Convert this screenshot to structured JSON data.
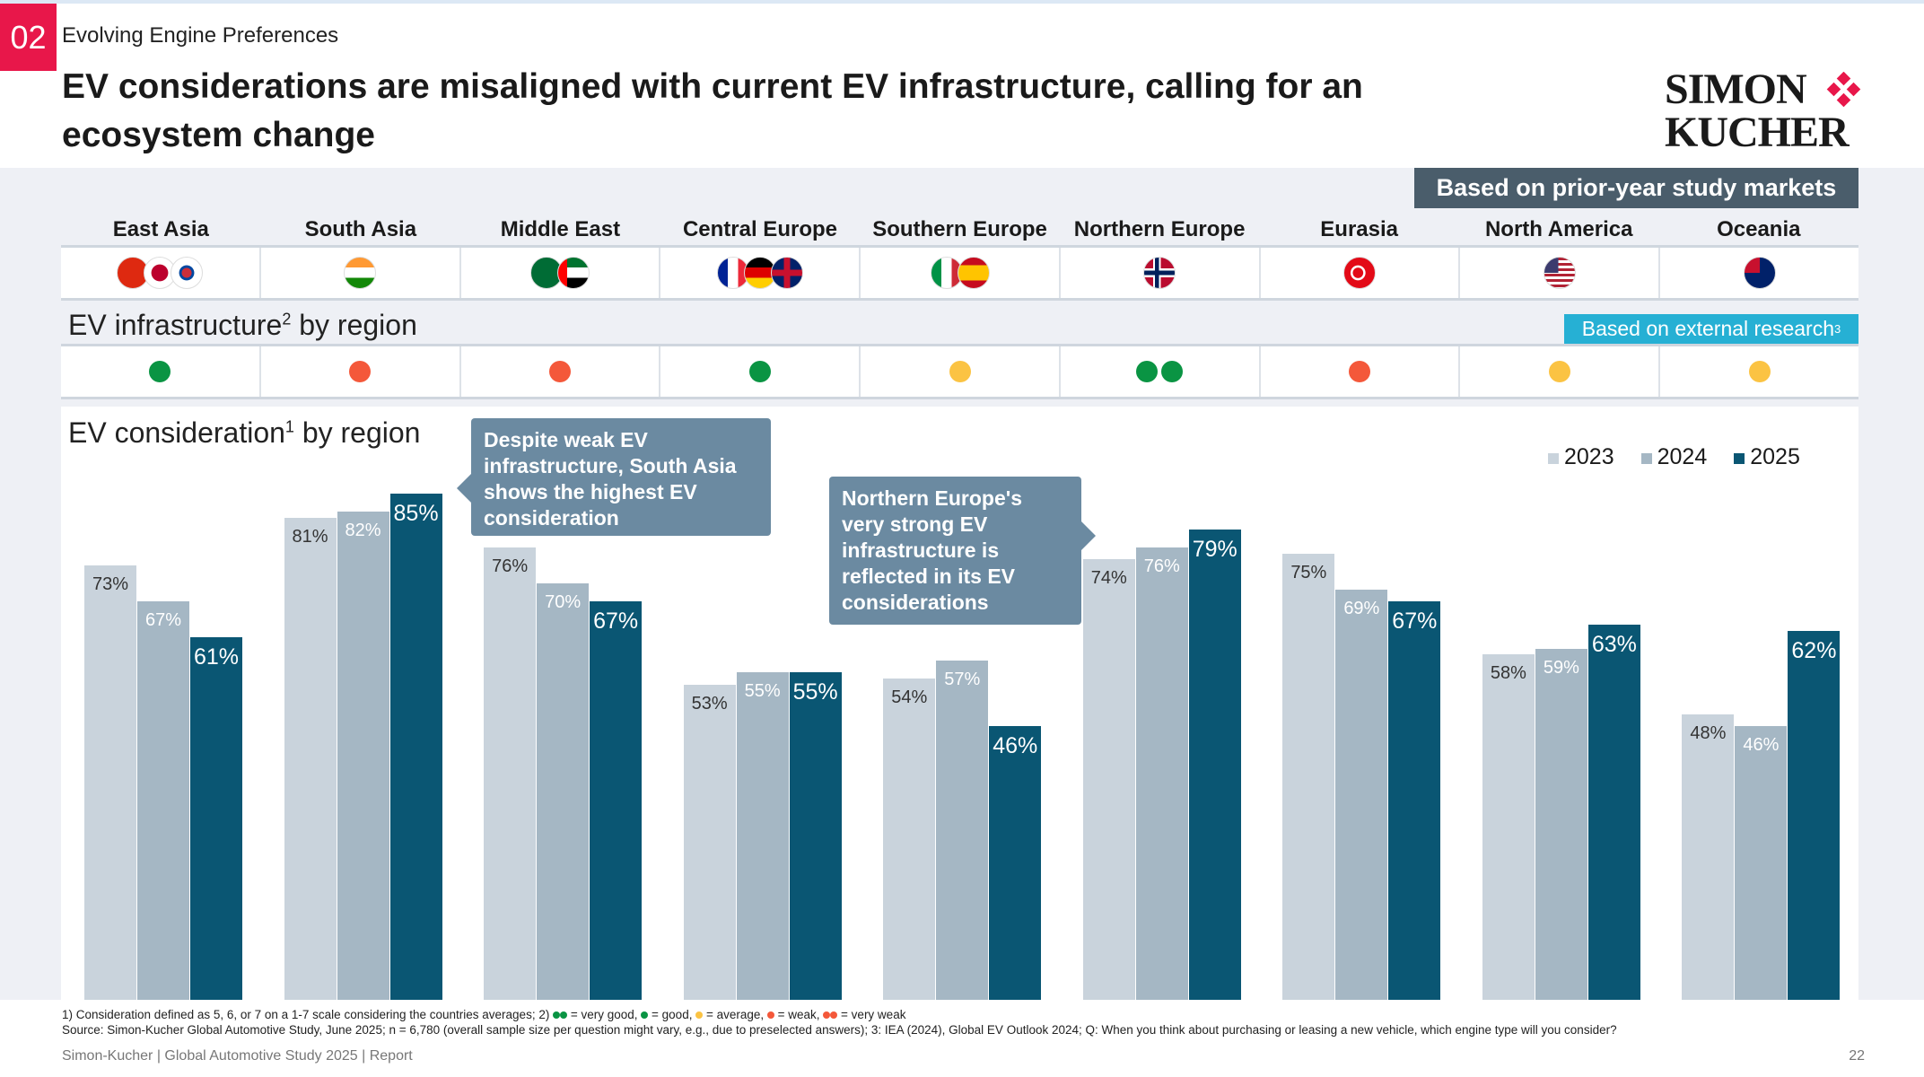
{
  "header": {
    "section_number": "02",
    "subtitle": "Evolving Engine Preferences",
    "title": "EV considerations are misaligned with current EV infrastructure, calling for an ecosystem change",
    "logo": "SIMON KUCHER"
  },
  "badges": {
    "prior_year": "Based on prior-year study markets",
    "external_research": "Based on external research",
    "external_research_sup": "3"
  },
  "regions": [
    {
      "name": "East Asia",
      "flags": [
        "china",
        "japan",
        "south-korea"
      ],
      "infrastructure": [
        "good"
      ]
    },
    {
      "name": "South Asia",
      "flags": [
        "india"
      ],
      "infrastructure": [
        "weak"
      ]
    },
    {
      "name": "Middle East",
      "flags": [
        "saudi-arabia",
        "uae"
      ],
      "infrastructure": [
        "weak"
      ]
    },
    {
      "name": "Central Europe",
      "flags": [
        "france",
        "germany",
        "uk"
      ],
      "infrastructure": [
        "good"
      ]
    },
    {
      "name": "Southern Europe",
      "flags": [
        "italy",
        "spain"
      ],
      "infrastructure": [
        "average"
      ]
    },
    {
      "name": "Northern Europe",
      "flags": [
        "norway"
      ],
      "infrastructure": [
        "good",
        "good"
      ]
    },
    {
      "name": "Eurasia",
      "flags": [
        "turkey"
      ],
      "infrastructure": [
        "weak"
      ]
    },
    {
      "name": "North America",
      "flags": [
        "usa"
      ],
      "infrastructure": [
        "average"
      ]
    },
    {
      "name": "Oceania",
      "flags": [
        "australia"
      ],
      "infrastructure": [
        "average"
      ]
    }
  ],
  "infrastructure_title": "EV infrastructure",
  "infrastructure_sup": "2",
  "infrastructure_suffix": " by region",
  "consideration_title": "EV consideration",
  "consideration_sup": "1",
  "consideration_suffix": " by region",
  "status_colors": {
    "good": "#0a9443",
    "average": "#fbc343",
    "weak": "#f4583a"
  },
  "callouts": [
    "Despite weak EV infrastructure, South Asia shows the highest EV consideration",
    "Northern Europe's very strong EV infrastructure is reflected in its EV considerations"
  ],
  "chart_data": {
    "type": "bar",
    "categories": [
      "East Asia",
      "South Asia",
      "Middle East",
      "Central Europe",
      "Southern Europe",
      "Northern Europe",
      "Eurasia",
      "North America",
      "Oceania"
    ],
    "series": [
      {
        "name": "2023",
        "color": "#c9d3dc",
        "values": [
          73,
          81,
          76,
          53,
          54,
          74,
          75,
          58,
          48
        ]
      },
      {
        "name": "2024",
        "color": "#a5b7c4",
        "values": [
          67,
          82,
          70,
          55,
          57,
          76,
          69,
          59,
          46
        ]
      },
      {
        "name": "2025",
        "color": "#0a5673",
        "values": [
          61,
          85,
          67,
          55,
          46,
          79,
          67,
          63,
          62
        ]
      }
    ],
    "unit": "%",
    "ylim": [
      0,
      100
    ],
    "legend": "top-right",
    "grid": false
  },
  "footnotes": {
    "line1_a": "1) Consideration defined as 5, 6, or 7 on a 1-7 scale considering the countries averages; 2)",
    "vg": " = very good, ",
    "g": " = good, ",
    "a": " = average, ",
    "w": " = weak, ",
    "vw": " = very weak",
    "line2": "Source: Simon-Kucher Global Automotive Study, June 2025; n = 6,780 (overall sample size per question might vary, e.g., due to preselected answers); 3: IEA (2024), Global EV Outlook 2024; Q: When you think about purchasing or leasing a new vehicle, which engine type will you consider?"
  },
  "footer": {
    "text": "Simon-Kucher | Global Automotive Study 2025 | Report",
    "page": "22"
  }
}
